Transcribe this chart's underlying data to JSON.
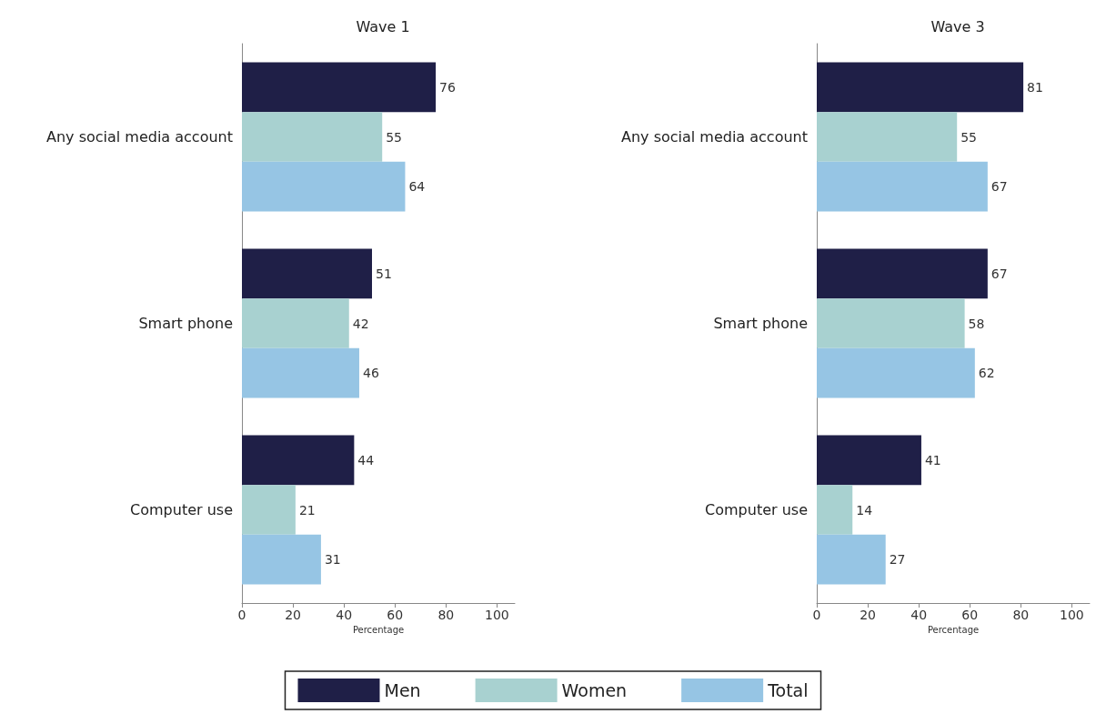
{
  "chart_data": [
    {
      "type": "bar",
      "orientation": "horizontal",
      "title": "Wave 1",
      "xlabel": "Percentage",
      "categories": [
        "Any social media account",
        "Smart phone",
        "Computer use"
      ],
      "series": [
        {
          "name": "Men",
          "color": "#1f1f47",
          "values": [
            76,
            51,
            44
          ]
        },
        {
          "name": "Women",
          "color": "#a8d1d0",
          "values": [
            55,
            42,
            21
          ]
        },
        {
          "name": "Total",
          "color": "#96c5e4",
          "values": [
            64,
            46,
            31
          ]
        }
      ],
      "xlim": [
        0,
        107
      ],
      "xticks": [
        0,
        20,
        40,
        60,
        80,
        100
      ],
      "data_labels": true,
      "grid": false,
      "legend": "bottom"
    },
    {
      "type": "bar",
      "orientation": "horizontal",
      "title": "Wave 3",
      "xlabel": "Percentage",
      "categories": [
        "Any social media account",
        "Smart phone",
        "Computer use"
      ],
      "series": [
        {
          "name": "Men",
          "color": "#1f1f47",
          "values": [
            81,
            67,
            41
          ]
        },
        {
          "name": "Women",
          "color": "#a8d1d0",
          "values": [
            55,
            58,
            14
          ]
        },
        {
          "name": "Total",
          "color": "#96c5e4",
          "values": [
            67,
            62,
            27
          ]
        }
      ],
      "xlim": [
        0,
        107
      ],
      "xticks": [
        0,
        20,
        40,
        60,
        80,
        100
      ],
      "data_labels": true,
      "grid": false,
      "legend": "bottom"
    }
  ]
}
